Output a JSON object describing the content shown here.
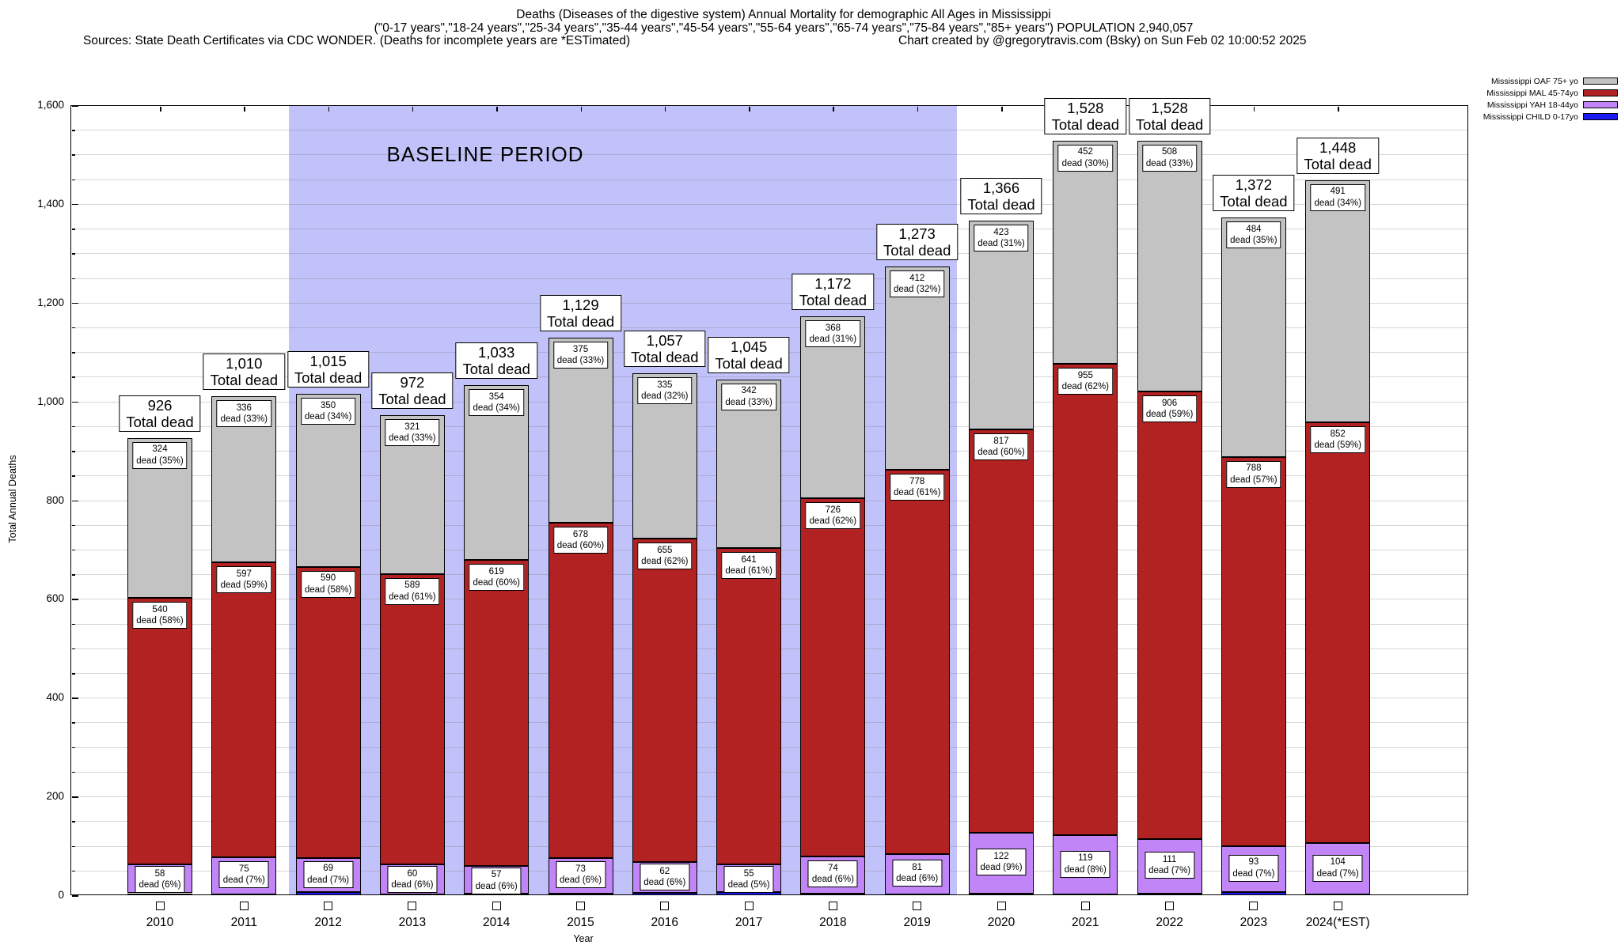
{
  "header": {
    "title_line1": "Deaths (Diseases of the digestive system) Annual Mortality for demographic All Ages in Mississippi",
    "title_line2": "(\"0-17 years\",\"18-24 years\",\"25-34 years\",\"35-44 years\",\"45-54 years\",\"55-64 years\",\"65-74 years\",\"75-84 years\",\"85+ years\") POPULATION 2,940,057",
    "title_line3_left": "Sources: State Death Certificates via CDC WONDER. (Deaths for incomplete years are *ESTimated)",
    "title_line3_right": "Chart created by @gregorytravis.com (Bsky) on Sun Feb 02 10:00:52 2025"
  },
  "chart_data": {
    "type": "bar",
    "stacked": true,
    "xlabel": "Year",
    "ylabel": "Total Annual Deaths",
    "ylim": [
      0,
      1600
    ],
    "ytick_interval": 200,
    "minor_grid_interval": 50,
    "grid": true,
    "legend_position": "top-right-outside",
    "baseline_period": {
      "label": "BASELINE PERIOD",
      "start_category": "2012",
      "end_category": "2019",
      "color": "#c2c2fa"
    },
    "total_label_suffix": "Total dead",
    "segment_label_word": "dead",
    "categories": [
      "2010",
      "2011",
      "2012",
      "2013",
      "2014",
      "2015",
      "2016",
      "2017",
      "2018",
      "2019",
      "2020",
      "2021",
      "2022",
      "2023",
      "2024(*EST)"
    ],
    "totals": [
      926,
      1010,
      1015,
      972,
      1033,
      1129,
      1057,
      1045,
      1172,
      1273,
      1366,
      1528,
      1528,
      1372,
      1448
    ],
    "series": [
      {
        "key": "oaf-75plus",
        "name": "Mississippi OAF 75+ yo",
        "color": "#c3c3c3",
        "label_mode": "top",
        "values": [
          324,
          336,
          350,
          321,
          354,
          375,
          335,
          342,
          368,
          412,
          423,
          452,
          508,
          484,
          491
        ],
        "percents": [
          35,
          33,
          34,
          33,
          34,
          33,
          32,
          33,
          31,
          32,
          31,
          30,
          33,
          35,
          34
        ]
      },
      {
        "key": "mal-45-74",
        "name": "Mississippi MAL 45-74yo",
        "color": "#b22222",
        "label_mode": "top",
        "values": [
          540,
          597,
          590,
          589,
          619,
          678,
          655,
          641,
          726,
          778,
          817,
          955,
          906,
          788,
          852
        ],
        "percents": [
          58,
          59,
          58,
          61,
          60,
          60,
          62,
          61,
          62,
          61,
          60,
          62,
          59,
          57,
          59
        ]
      },
      {
        "key": "yah-18-44",
        "name": "Mississippi YAH 18-44yo",
        "color": "#c285f7",
        "label_mode": "center",
        "values": [
          58,
          75,
          69,
          60,
          57,
          73,
          62,
          55,
          74,
          81,
          122,
          119,
          111,
          93,
          104
        ],
        "percents": [
          6,
          7,
          7,
          6,
          6,
          6,
          6,
          5,
          6,
          6,
          9,
          8,
          7,
          7,
          7
        ]
      },
      {
        "key": "child-0-17",
        "name": "Mississippi CHILD 0-17yo",
        "color": "#1a1af0",
        "label_mode": "empty-box-below-axis",
        "values": [
          4,
          2,
          6,
          2,
          3,
          3,
          5,
          7,
          4,
          2,
          4,
          2,
          3,
          7,
          1
        ]
      }
    ]
  }
}
